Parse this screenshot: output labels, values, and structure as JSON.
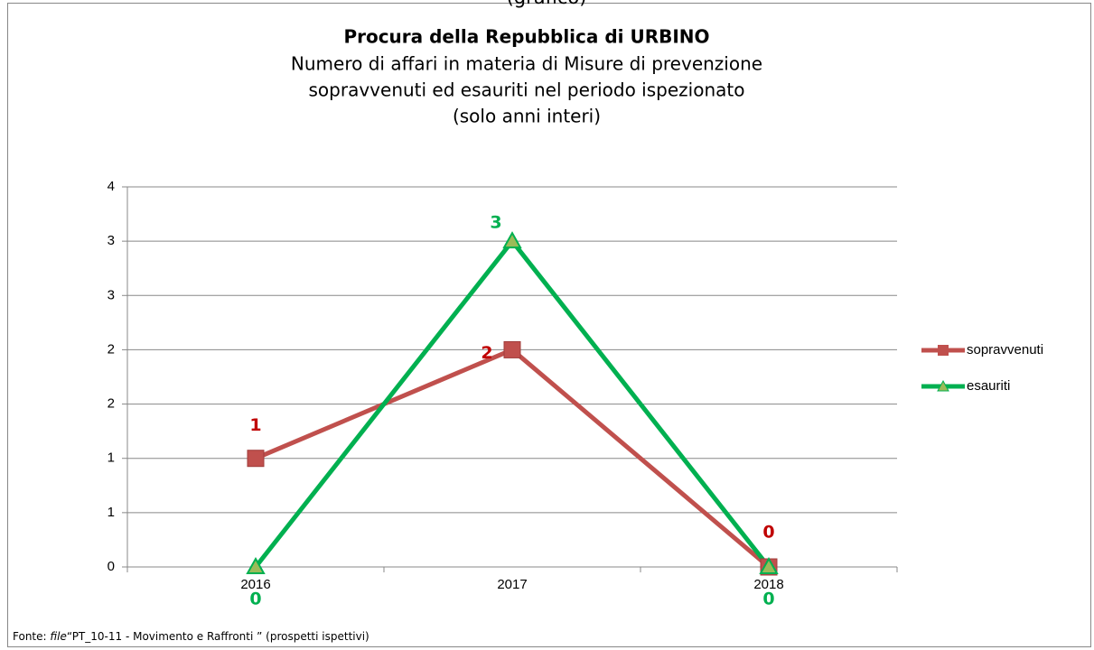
{
  "chart_data": {
    "type": "line",
    "header": "(grafico)",
    "title": "Procura della Repubblica di URBINO",
    "subtitle": [
      "Numero di affari in materia di Misure di prevenzione",
      "sopravvenuti ed esauriti nel periodo ispezionato",
      "(solo anni interi)"
    ],
    "categories": [
      "2016",
      "2017",
      "2018"
    ],
    "series": [
      {
        "name": "sopravvenuti",
        "color": "#c0504d",
        "label_color": "#c00000",
        "marker": "square",
        "values": [
          1,
          2,
          0
        ]
      },
      {
        "name": "esauriti",
        "color": "#00b050",
        "label_color": "#00b050",
        "marker": "triangle",
        "values": [
          0,
          3,
          0
        ]
      }
    ],
    "ylim": [
      0,
      3.5
    ],
    "yticks": [
      0,
      {
        "value": 0.5,
        "label": "1"
      },
      1,
      {
        "value": 1.5,
        "label": "2"
      },
      2,
      {
        "value": 2.5,
        "label": "3"
      },
      3,
      {
        "value": 3.5,
        "label": "4"
      }
    ],
    "grid": true,
    "legend": "right",
    "source": {
      "prefix": "Fonte: ",
      "italic": "file",
      "rest": "“PT_10-11 - Movimento e Raffronti ” (prospetti ispettivi)"
    }
  }
}
